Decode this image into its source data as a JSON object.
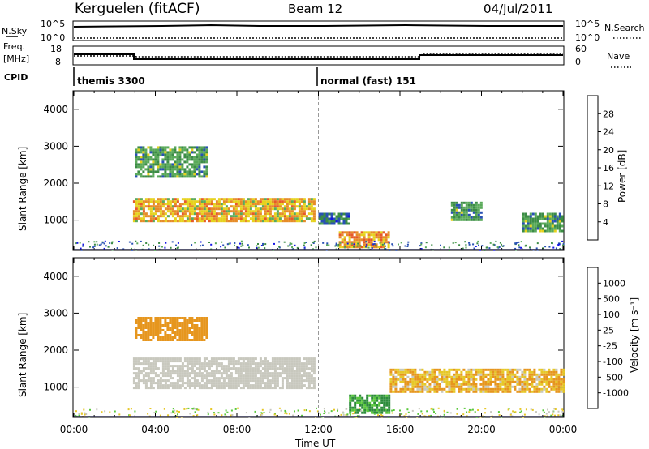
{
  "header": {
    "station": "Kerguelen (fitACF)",
    "beam": "Beam 12",
    "date": "04/Jul/2011"
  },
  "noise_panel": {
    "left_label": "N.Sky",
    "right_label": "N.Search",
    "ticks_left": [
      "10^5",
      "10^0"
    ],
    "ticks_right": [
      "10^5",
      "10^0"
    ]
  },
  "freq_panel": {
    "left_label_1": "Freq.",
    "left_label_2": "[MHz]",
    "right_label": "Nave",
    "ticks_left": [
      "18",
      "8"
    ],
    "ticks_right": [
      "60",
      "0"
    ]
  },
  "cpid": {
    "label": "CPID",
    "modes": [
      {
        "text": "themis 3300",
        "start_hour": 0
      },
      {
        "text": "normal (fast) 151",
        "start_hour": 12
      }
    ]
  },
  "x_axis": {
    "label": "Time UT",
    "ticks": [
      "00:00",
      "04:00",
      "08:00",
      "12:00",
      "16:00",
      "20:00",
      "00:00"
    ]
  },
  "chart_data": [
    {
      "type": "heatmap",
      "title": "",
      "xlabel": "Time UT",
      "ylabel": "Slant Range [km]",
      "xlim": [
        0,
        24
      ],
      "ylim": [
        180,
        4500
      ],
      "yticks": [
        "1000",
        "2000",
        "3000",
        "4000"
      ],
      "colorbar": {
        "label": "Power [dB]",
        "ticks": [
          "4",
          "8",
          "12",
          "16",
          "20",
          "24",
          "28"
        ],
        "colors": [
          "#1414e6",
          "#2850b4",
          "#3c8c46",
          "#5aaa5a",
          "#e6d21e",
          "#e68c28",
          "#e65a28",
          "#e61414"
        ]
      },
      "regions": [
        {
          "t0": 2.9,
          "t1": 11.8,
          "r0": 1000,
          "r1": 1600,
          "value": 20
        },
        {
          "t0": 3.0,
          "t1": 6.5,
          "r0": 2200,
          "r1": 3000,
          "value": 12
        },
        {
          "t0": 13.0,
          "t1": 15.5,
          "r0": 300,
          "r1": 700,
          "value": 22
        },
        {
          "t0": 12.0,
          "t1": 13.5,
          "r0": 900,
          "r1": 1200,
          "value": 8
        },
        {
          "t0": 18.5,
          "t1": 20.0,
          "r0": 1000,
          "r1": 1500,
          "value": 12
        },
        {
          "t0": 22.0,
          "t1": 24.0,
          "r0": 700,
          "r1": 1200,
          "value": 12
        }
      ]
    },
    {
      "type": "heatmap",
      "title": "",
      "xlabel": "Time UT",
      "ylabel": "Slant Range [km]",
      "xlim": [
        0,
        24
      ],
      "ylim": [
        180,
        4500
      ],
      "yticks": [
        "1000",
        "2000",
        "3000",
        "4000"
      ],
      "colorbar": {
        "label": "Velocity [m s⁻¹]",
        "ticks": [
          "1000",
          "500",
          "100",
          "25",
          "-25",
          "-100",
          "-500",
          "-1000"
        ],
        "colors": [
          "#1e3cc8",
          "#2d6e96",
          "#2d8c3c",
          "#5ac83c",
          "#c8c8be",
          "#e6c828",
          "#e6961e",
          "#e65a1e",
          "#e61414"
        ]
      },
      "regions": [
        {
          "t0": 2.9,
          "t1": 11.8,
          "r0": 1000,
          "r1": 1800,
          "value": 0
        },
        {
          "t0": 3.0,
          "t1": 6.5,
          "r0": 2300,
          "r1": 2900,
          "value": -300
        },
        {
          "t0": 13.5,
          "t1": 15.5,
          "r0": 300,
          "r1": 800,
          "value": 150
        },
        {
          "t0": 15.5,
          "t1": 24.0,
          "r0": 900,
          "r1": 1500,
          "value": -100
        }
      ]
    }
  ]
}
